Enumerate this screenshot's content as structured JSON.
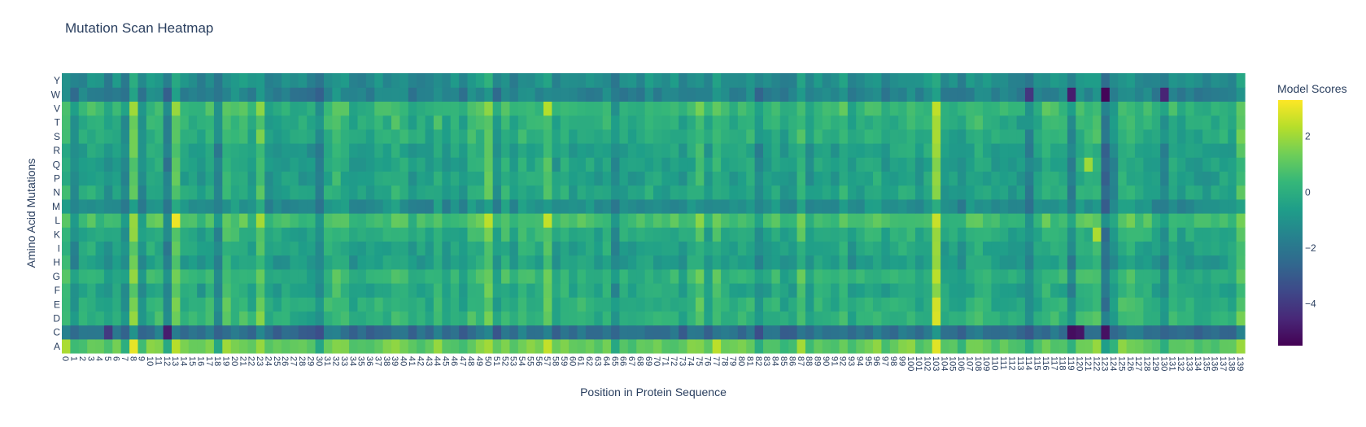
{
  "chart_data": {
    "type": "heatmap",
    "title": "Mutation Scan Heatmap",
    "xlabel": "Position in Protein Sequence",
    "ylabel": "Amino Acid Mutations",
    "colorbar_title": "Model Scores",
    "colorscale": "viridis",
    "colorscale_stops": [
      "#440154",
      "#482878",
      "#3e4989",
      "#31688e",
      "#26828e",
      "#1f9e89",
      "#35b779",
      "#6ece58",
      "#b5de2b",
      "#fde725"
    ],
    "zmin": -5.5,
    "zmax": 3.3,
    "colorbar_ticks": [
      2,
      0,
      -2,
      -4
    ],
    "colorbar_tick_labels": [
      "2",
      "0",
      "−2",
      "−4"
    ],
    "x_start": 0,
    "x_end": 139,
    "y_categories": [
      "A",
      "C",
      "D",
      "E",
      "F",
      "G",
      "H",
      "I",
      "K",
      "L",
      "M",
      "N",
      "P",
      "Q",
      "R",
      "S",
      "T",
      "V",
      "W",
      "Y"
    ],
    "grid": false,
    "base_level": {
      "A": 1.1,
      "C": -2.3,
      "D": 0.1,
      "E": 0.0,
      "F": -0.3,
      "G": 0.1,
      "H": -0.6,
      "I": -0.4,
      "K": -0.1,
      "L": 0.6,
      "M": -1.2,
      "N": -0.4,
      "P": -0.5,
      "Q": -0.5,
      "R": -0.5,
      "S": -0.1,
      "T": 0.0,
      "V": 0.3,
      "W": -1.6,
      "Y": -1.2
    },
    "column_offsets": [
      {
        "x": 0,
        "offset": 1.0
      },
      {
        "x": 1,
        "offset": -0.9
      },
      {
        "x": 7,
        "offset": -0.6
      },
      {
        "x": 8,
        "offset": 1.5
      },
      {
        "x": 9,
        "offset": -0.8
      },
      {
        "x": 12,
        "offset": -1.4
      },
      {
        "x": 13,
        "offset": 1.6
      },
      {
        "x": 18,
        "offset": -0.8
      },
      {
        "x": 19,
        "offset": 1.0
      },
      {
        "x": 23,
        "offset": 1.2
      },
      {
        "x": 30,
        "offset": -0.7
      },
      {
        "x": 32,
        "offset": 0.8
      },
      {
        "x": 39,
        "offset": 0.4
      },
      {
        "x": 48,
        "offset": 0.3
      },
      {
        "x": 50,
        "offset": 0.9
      },
      {
        "x": 57,
        "offset": 1.0
      },
      {
        "x": 65,
        "offset": -1.0
      },
      {
        "x": 75,
        "offset": 1.1
      },
      {
        "x": 77,
        "offset": 0.8
      },
      {
        "x": 82,
        "offset": -0.6
      },
      {
        "x": 87,
        "offset": 0.9
      },
      {
        "x": 103,
        "offset": 2.6
      },
      {
        "x": 114,
        "offset": -0.9
      },
      {
        "x": 116,
        "offset": 0.8
      },
      {
        "x": 119,
        "offset": -1.1
      },
      {
        "x": 122,
        "offset": 1.0
      },
      {
        "x": 123,
        "offset": -1.6
      },
      {
        "x": 124,
        "offset": -0.8
      },
      {
        "x": 130,
        "offset": -1.0
      },
      {
        "x": 139,
        "offset": 1.0
      }
    ],
    "strong_cells": [
      {
        "x": 13,
        "y": "L",
        "value": 3.1
      },
      {
        "x": 8,
        "y": "A",
        "value": 3.0
      },
      {
        "x": 103,
        "y": "A",
        "value": 2.9
      },
      {
        "x": 103,
        "y": "D",
        "value": 2.8
      },
      {
        "x": 103,
        "y": "E",
        "value": 2.7
      },
      {
        "x": 77,
        "y": "A",
        "value": 2.4
      },
      {
        "x": 57,
        "y": "L",
        "value": 2.5
      },
      {
        "x": 57,
        "y": "V",
        "value": 2.3
      },
      {
        "x": 50,
        "y": "L",
        "value": 2.4
      },
      {
        "x": 119,
        "y": "C",
        "value": -5.2
      },
      {
        "x": 120,
        "y": "C",
        "value": -5.0
      },
      {
        "x": 123,
        "y": "W",
        "value": -5.4
      },
      {
        "x": 123,
        "y": "C",
        "value": -5.1
      },
      {
        "x": 12,
        "y": "C",
        "value": -4.8
      },
      {
        "x": 119,
        "y": "W",
        "value": -4.8
      },
      {
        "x": 130,
        "y": "W",
        "value": -4.6
      },
      {
        "x": 5,
        "y": "C",
        "value": -4.0
      },
      {
        "x": 114,
        "y": "W",
        "value": -4.1
      },
      {
        "x": 121,
        "y": "Q",
        "value": 2.0
      },
      {
        "x": 122,
        "y": "K",
        "value": 2.2
      }
    ]
  }
}
